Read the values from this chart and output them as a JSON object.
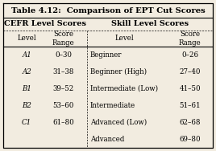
{
  "title": "Table 4.12:  Comparison of EPT Cut Scores",
  "col_header_left": "CEFR Level Scores",
  "col_header_right": "Skill Level Scores",
  "cefr_levels": [
    "A1",
    "A2",
    "B1",
    "B2",
    "C1",
    ""
  ],
  "cefr_ranges": [
    "0–30",
    "31–38",
    "39–52",
    "53–60",
    "61–80",
    ""
  ],
  "skill_levels": [
    "Beginner",
    "Beginner (High)",
    "Intermediate (Low)",
    "Intermediate",
    "Advanced (Low)",
    "Advanced"
  ],
  "skill_ranges": [
    "0–26",
    "27–40",
    "41–50",
    "51–61",
    "62–68",
    "69–80"
  ],
  "bg_color": "#f2ece0",
  "title_fontsize": 7.2,
  "header_fontsize": 7.0,
  "cell_fontsize": 6.2
}
